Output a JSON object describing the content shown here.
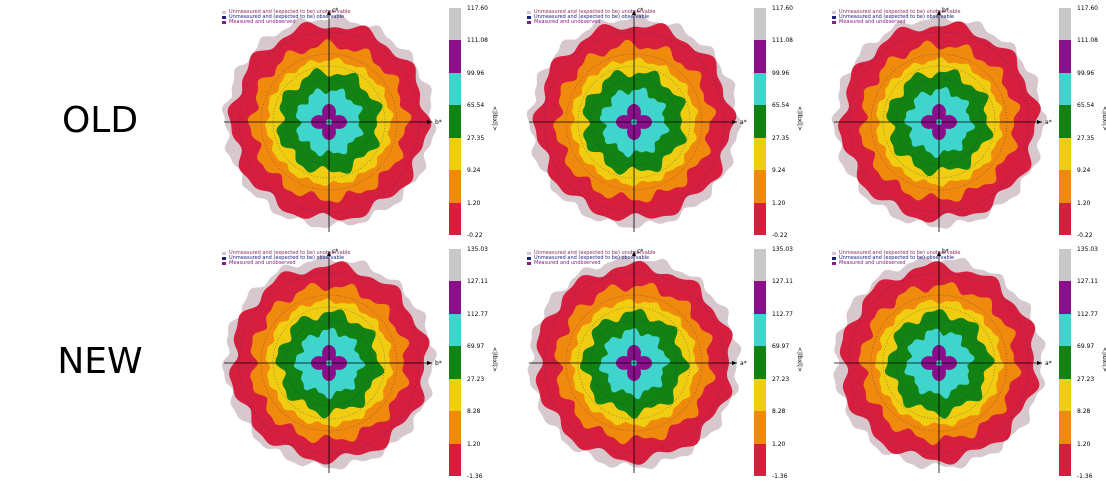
{
  "rows": [
    {
      "label": "OLD",
      "ticks": [
        "117.60",
        "111.08",
        "99.96",
        "65.54",
        "27.35",
        "9.24",
        "1.20",
        "-0.22"
      ],
      "panels": [
        {
          "axis_top": "c*",
          "axis_right": "b*"
        },
        {
          "axis_top": "c*",
          "axis_right": "a*"
        },
        {
          "axis_top": "b*",
          "axis_right": "a*"
        }
      ]
    },
    {
      "label": "NEW",
      "ticks": [
        "135.03",
        "127.11",
        "112.77",
        "69.97",
        "27.23",
        "8.28",
        "1.20",
        "-1.36"
      ],
      "panels": [
        {
          "axis_top": "c*",
          "axis_right": "b*"
        },
        {
          "axis_top": "c*",
          "axis_right": "a*"
        },
        {
          "axis_top": "b*",
          "axis_right": "a*"
        }
      ]
    }
  ],
  "colorbar_label": "<|Ibxl|>",
  "legend": [
    {
      "text": "Unmeasured and (expected to be) unobservable",
      "color": "#d9c3cf"
    },
    {
      "text": "Unmeasured and (expected to be) observable",
      "color": "#1a237e"
    },
    {
      "text": "Measured and unobserved",
      "color": "#8b1a8b"
    }
  ],
  "colors": {
    "outer_gray": "#d6c8cc",
    "red": "#d61f3f",
    "orange": "#f08a0c",
    "yellow": "#f0cd10",
    "green": "#128212",
    "cyan": "#3fd4cc",
    "purple": "#8a0f8a",
    "gray_bar": "#c8c8c8"
  }
}
